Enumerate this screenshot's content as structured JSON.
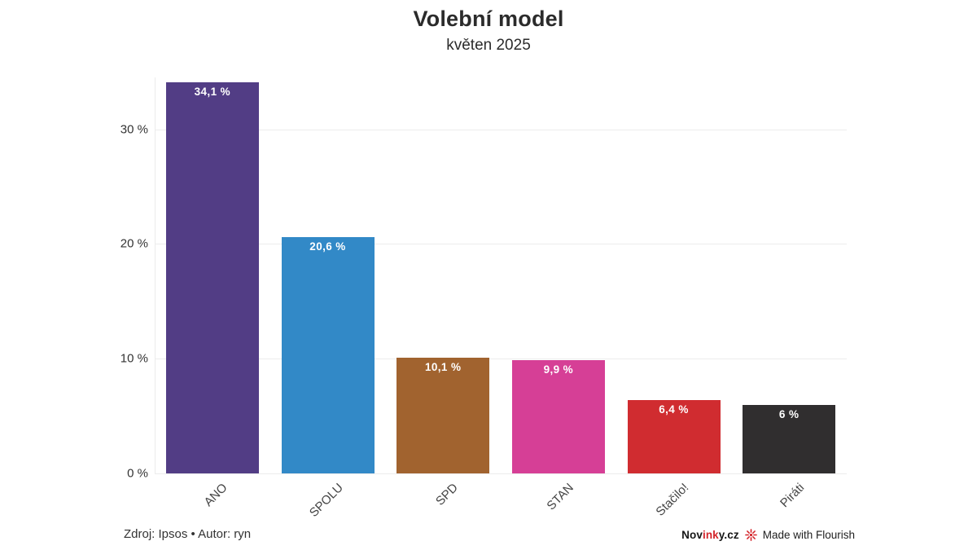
{
  "chart_data": {
    "type": "bar",
    "title": "Volební model",
    "subtitle": "květen 2025",
    "categories": [
      "ANO",
      "SPOLU",
      "SPD",
      "STAN",
      "Stačilo!",
      "Piráti"
    ],
    "values": [
      34.1,
      20.6,
      10.1,
      9.9,
      6.4,
      6
    ],
    "value_labels": [
      "34,1 %",
      "20,6 %",
      "10,1 %",
      "9,9 %",
      "6,4 %",
      "6 %"
    ],
    "bar_colors": [
      "#523d85",
      "#3289c7",
      "#a1632f",
      "#d63f96",
      "#d02c30",
      "#302e2f"
    ],
    "xlabel": "",
    "ylabel": "",
    "ylim": [
      0,
      34.5
    ],
    "yticks": [
      {
        "value": 0,
        "label": "0 %"
      },
      {
        "value": 10,
        "label": "10 %"
      },
      {
        "value": 20,
        "label": "20 %"
      },
      {
        "value": 30,
        "label": "30 %"
      }
    ],
    "grid": true,
    "legend": false,
    "grid_color": "#ececec",
    "value_label_color": "#ffffff"
  },
  "footer": {
    "source": "Zdroj: Ipsos • Autor: ryn",
    "brand": {
      "part1": "Nov",
      "part2": "ink",
      "part3": "y.cz"
    },
    "flourish_label": "Made with Flourish",
    "accent_red": "#d4262c"
  }
}
